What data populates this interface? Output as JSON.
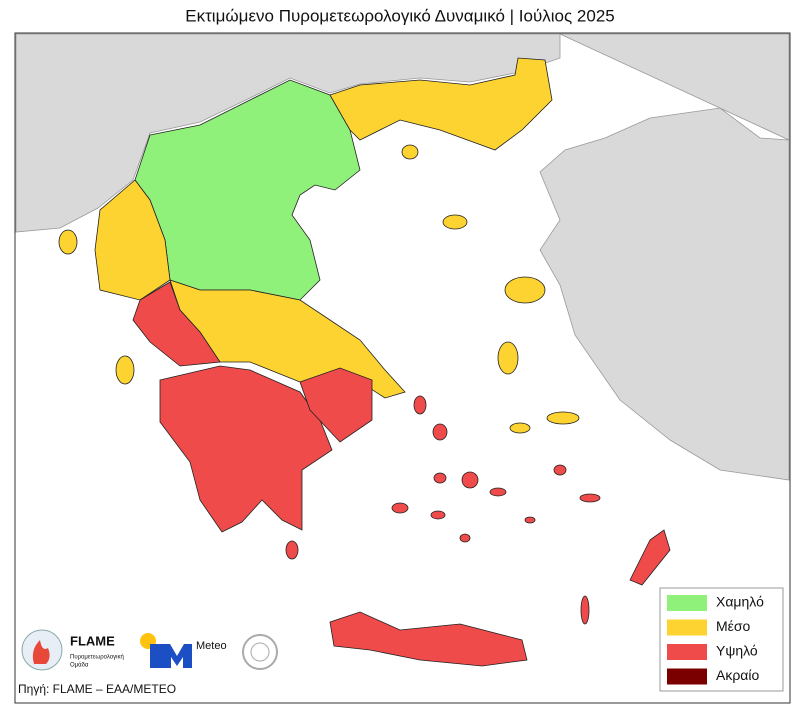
{
  "title": "Εκτιμώμενο Πυρομετεωρολογικό Δυναμικό | Ιούλιος 2025",
  "legend": [
    {
      "label": "Χαμηλό",
      "color": "#8ff07a"
    },
    {
      "label": "Μέσο",
      "color": "#fdd332"
    },
    {
      "label": "Υψηλό",
      "color": "#ef4b4b"
    },
    {
      "label": "Ακραίο",
      "color": "#7a0000"
    }
  ],
  "source": "Πηγή: FLAME – ΕΑΑ/METEO",
  "logos": {
    "flame": "FLAME",
    "flame_subtitle": [
      "Πυρομετεωρολογική",
      "Ομάδα"
    ],
    "meteo": "Meteo"
  }
}
